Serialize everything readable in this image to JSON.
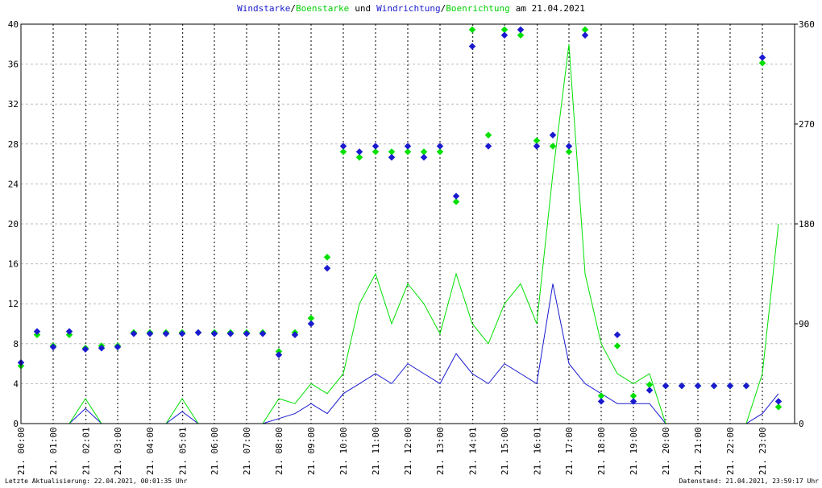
{
  "chart_data": {
    "type": "line",
    "title_parts": [
      {
        "text": "Windstarke",
        "color": "#1a1ad0"
      },
      {
        "text": "/",
        "color": "#000000"
      },
      {
        "text": "Boenstarke",
        "color": "#00d000"
      },
      {
        "text": "und",
        "color": "#000000"
      },
      {
        "text": "Windrichtung",
        "color": "#1a1ad0"
      },
      {
        "text": "/",
        "color": "#000000"
      },
      {
        "text": "Boenrichtung",
        "color": "#00d000"
      },
      {
        "text": "am 21.04.2021",
        "color": "#000000"
      }
    ],
    "footer_left": "Letzte Aktualisierung: 22.04.2021, 00:01:35 Uhr",
    "footer_right": "Datenstand: 21.04.2021, 23:59:17 Uhr",
    "x": [
      0,
      0.5,
      1,
      1.5,
      2,
      2.5,
      3,
      3.5,
      4,
      4.5,
      5,
      5.5,
      6,
      6.5,
      7,
      7.5,
      8,
      8.5,
      9,
      9.5,
      10,
      10.5,
      11,
      11.5,
      12,
      12.5,
      13,
      13.5,
      14,
      14.5,
      15,
      15.5,
      16,
      16.5,
      17,
      17.5,
      18,
      18.5,
      19,
      19.5,
      20,
      20.5,
      21,
      21.5,
      22,
      22.5,
      23,
      23.5
    ],
    "xlim": [
      0,
      24
    ],
    "xticks": [
      {
        "value": 0,
        "label": "21. 00:00"
      },
      {
        "value": 1,
        "label": "21. 01:00"
      },
      {
        "value": 2.017,
        "label": "21. 02:01"
      },
      {
        "value": 3,
        "label": "21. 03:00"
      },
      {
        "value": 4,
        "label": "21. 04:00"
      },
      {
        "value": 5.017,
        "label": "21. 05:01"
      },
      {
        "value": 6,
        "label": "21. 06:00"
      },
      {
        "value": 7,
        "label": "21. 07:00"
      },
      {
        "value": 8,
        "label": "21. 08:00"
      },
      {
        "value": 9,
        "label": "21. 09:00"
      },
      {
        "value": 10,
        "label": "21. 10:00"
      },
      {
        "value": 11,
        "label": "21. 11:00"
      },
      {
        "value": 12,
        "label": "21. 12:00"
      },
      {
        "value": 13,
        "label": "21. 13:00"
      },
      {
        "value": 14.017,
        "label": "21. 14:01"
      },
      {
        "value": 15,
        "label": "21. 15:00"
      },
      {
        "value": 16.017,
        "label": "21. 16:01"
      },
      {
        "value": 17,
        "label": "21. 17:00"
      },
      {
        "value": 18,
        "label": "21. 18:00"
      },
      {
        "value": 19,
        "label": "21. 19:00"
      },
      {
        "value": 20,
        "label": "21. 20:00"
      },
      {
        "value": 21,
        "label": "21. 21:00"
      },
      {
        "value": 22,
        "label": "21. 22:00"
      },
      {
        "value": 23,
        "label": "21. 23:00"
      }
    ],
    "ylim": [
      0,
      40
    ],
    "yticks": [
      0,
      4,
      8,
      12,
      16,
      20,
      24,
      28,
      32,
      36,
      40
    ],
    "y2lim": [
      0,
      360
    ],
    "y2ticks": [
      0,
      90,
      180,
      270,
      360
    ],
    "grid": true,
    "series": [
      {
        "name": "Windstarke",
        "style": "line",
        "color": "#1a1ad0",
        "values": [
          0,
          0,
          0,
          0,
          1.5,
          0,
          0,
          0,
          0,
          0,
          1.2,
          0,
          0,
          0,
          0,
          0,
          0.5,
          1,
          2,
          1,
          3,
          4,
          5,
          4,
          6,
          5,
          4,
          7,
          5,
          4,
          6,
          5,
          4,
          14,
          6,
          4,
          3,
          2,
          2,
          2,
          0,
          0,
          0,
          0,
          0,
          0,
          1,
          3
        ]
      },
      {
        "name": "Boenstarke",
        "style": "line",
        "color": "#00e000",
        "values": [
          0,
          0,
          0,
          0,
          2.5,
          0,
          0,
          0,
          0,
          0,
          2.5,
          0,
          0,
          0,
          0,
          0,
          2.5,
          2,
          4,
          3,
          5,
          12,
          15,
          10,
          14,
          12,
          9,
          15,
          10,
          8,
          12,
          14,
          10,
          25,
          38,
          15,
          8,
          5,
          4,
          5,
          0,
          0,
          0,
          0,
          0,
          0,
          5,
          20
        ]
      },
      {
        "name": "Boenrichtung",
        "style": "points",
        "axis": "y2",
        "color": "#00e000",
        "values": [
          52,
          80,
          70,
          80,
          68,
          70,
          70,
          82,
          82,
          82,
          82,
          82,
          82,
          82,
          82,
          82,
          65,
          82,
          95,
          150,
          245,
          240,
          245,
          245,
          245,
          245,
          245,
          200,
          355,
          260,
          355,
          350,
          255,
          250,
          245,
          355,
          25,
          70,
          25,
          35,
          34,
          34,
          34,
          34,
          34,
          34,
          325,
          15
        ]
      },
      {
        "name": "Windrichtung",
        "style": "points",
        "axis": "y2",
        "color": "#1a1ad0",
        "values": [
          55,
          83,
          69,
          83,
          67,
          68,
          69,
          81,
          81,
          81,
          81,
          82,
          81,
          81,
          81,
          81,
          62,
          80,
          90,
          140,
          250,
          245,
          250,
          240,
          250,
          240,
          250,
          205,
          340,
          250,
          350,
          355,
          250,
          260,
          250,
          350,
          20,
          80,
          20,
          30,
          34,
          34,
          34,
          34,
          34,
          34,
          330,
          20
        ]
      }
    ]
  }
}
